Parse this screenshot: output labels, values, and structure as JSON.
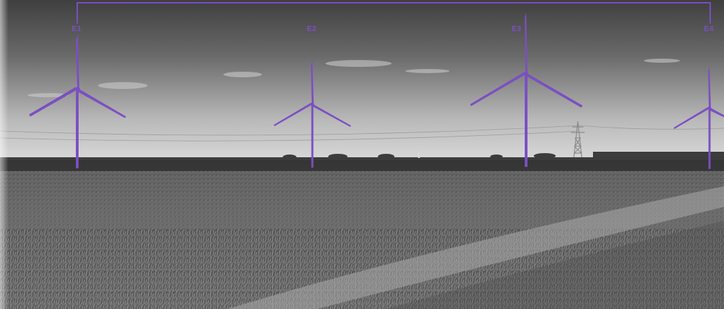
{
  "photo": {
    "description_visible": false
  },
  "overlay": {
    "accent_color": "#7b4fc2",
    "turbines": [
      {
        "id": "e1",
        "label": "E1"
      },
      {
        "id": "e2",
        "label": "E2"
      },
      {
        "id": "e3",
        "label": "E3"
      },
      {
        "id": "e4",
        "label": "E4"
      }
    ]
  }
}
